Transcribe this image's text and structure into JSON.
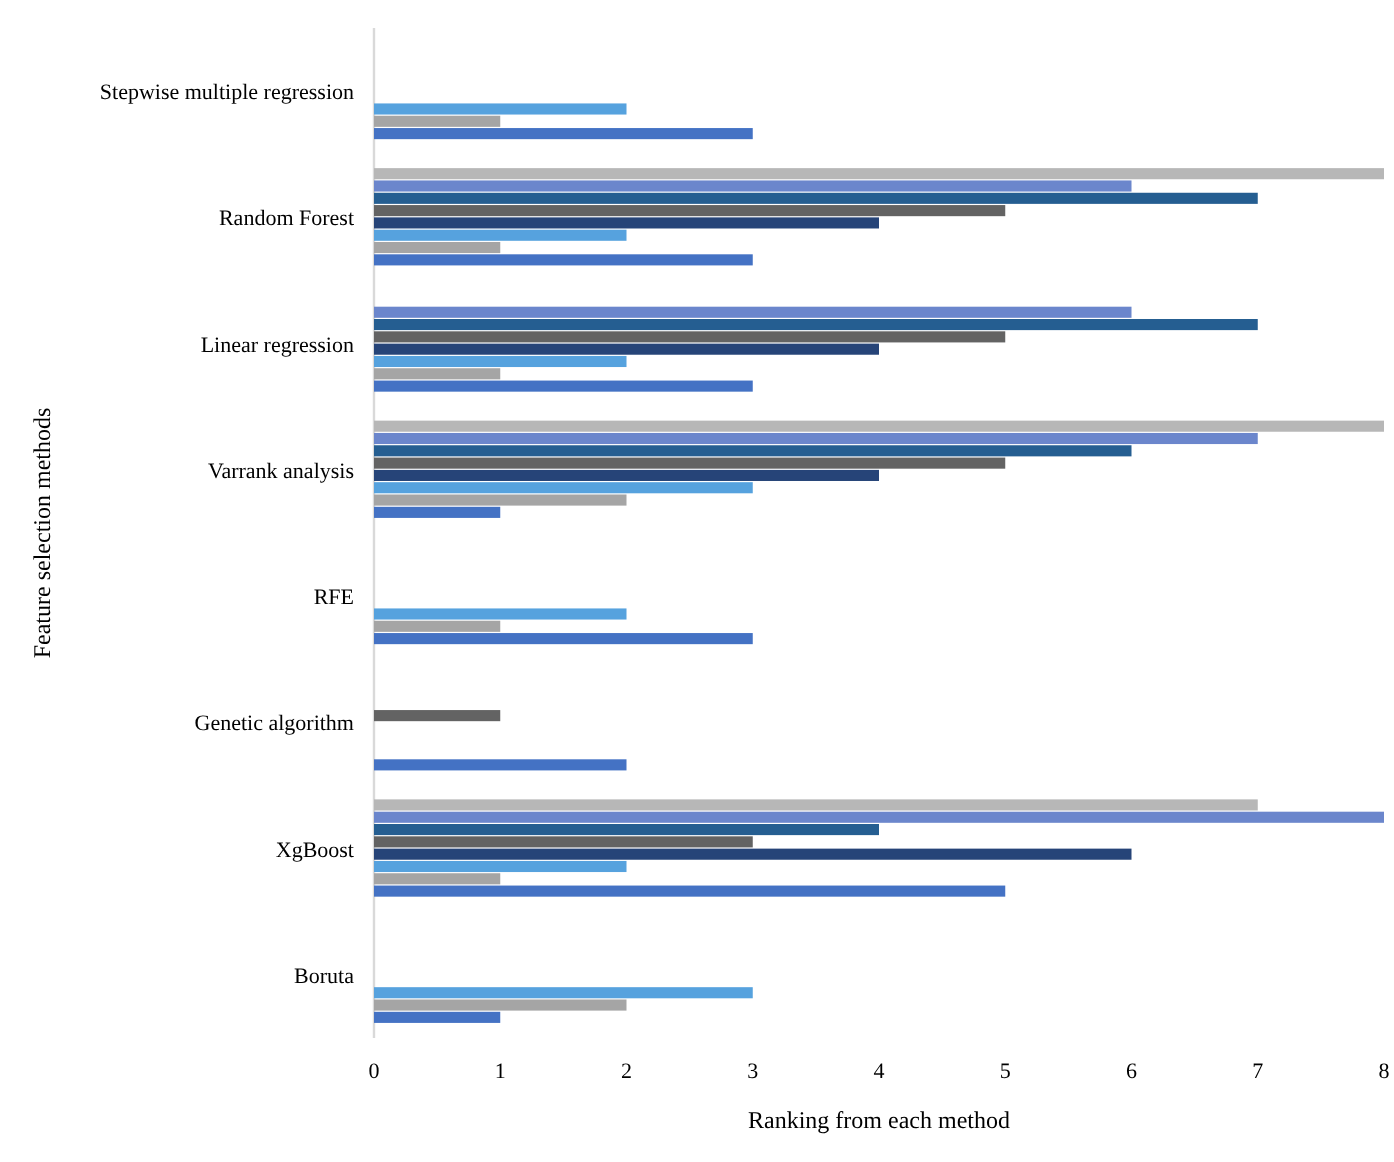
{
  "chart_data": {
    "type": "bar",
    "orientation": "horizontal",
    "categories": [
      "Stepwise multiple regression",
      "Random Forest",
      "Linear regression",
      "Varrank analysis",
      "RFE",
      "Genetic algorithm",
      "XgBoost",
      "Boruta"
    ],
    "xlabel": "Ranking from each method",
    "ylabel": "Feature selection methods",
    "xlim": [
      0,
      8
    ],
    "xticks": [
      0,
      1,
      2,
      3,
      4,
      5,
      6,
      7,
      8
    ],
    "grid": false,
    "series": [
      {
        "color": "#4472c4",
        "values": [
          3,
          3,
          3,
          1,
          3,
          2,
          5,
          1
        ]
      },
      {
        "color": "#a5a5a5",
        "values": [
          1,
          1,
          1,
          2,
          1,
          null,
          1,
          2
        ]
      },
      {
        "color": "#56a2de",
        "values": [
          2,
          2,
          2,
          3,
          2,
          null,
          2,
          3
        ]
      },
      {
        "color": "#264478",
        "values": [
          null,
          4,
          4,
          4,
          null,
          null,
          6,
          null
        ]
      },
      {
        "color": "#636363",
        "values": [
          null,
          5,
          5,
          5,
          null,
          1,
          3,
          null
        ]
      },
      {
        "color": "#255e91",
        "values": [
          null,
          7,
          7,
          6,
          null,
          null,
          4,
          null
        ]
      },
      {
        "color": "#6b86cc",
        "values": [
          null,
          6,
          6,
          7,
          null,
          null,
          8,
          null
        ]
      },
      {
        "color": "#b7b7b7",
        "values": [
          null,
          8,
          null,
          8,
          null,
          null,
          7,
          null
        ]
      }
    ]
  }
}
